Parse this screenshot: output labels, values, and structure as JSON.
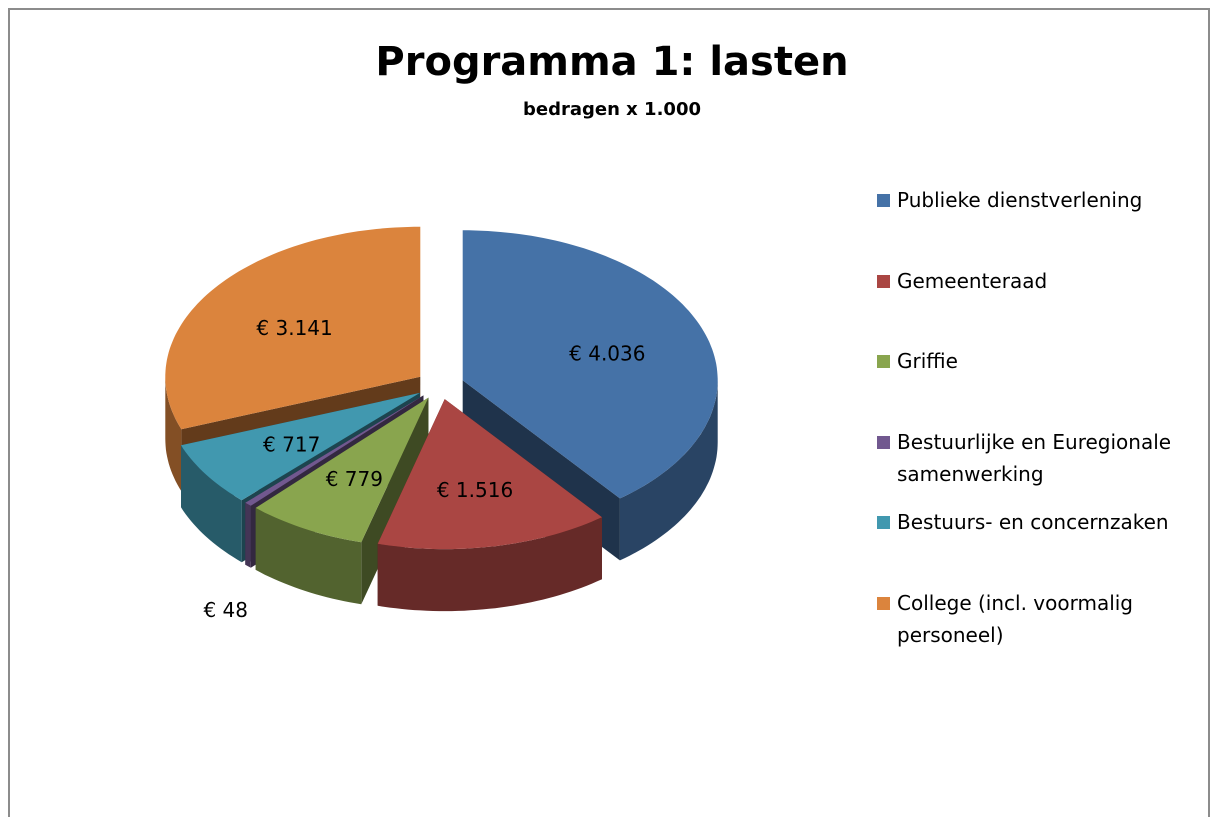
{
  "chart_data": {
    "type": "pie",
    "title": "Programma 1: lasten",
    "subtitle": "bedragen x 1.000",
    "categories": [
      "Publieke dienstverlening",
      "Gemeenteraad",
      "Griffie",
      "Bestuurlijke en Euregionale samenwerking",
      "Bestuurs- en concernzaken",
      "College (incl. voormalig personeel)"
    ],
    "values": [
      4036,
      1516,
      779,
      48,
      717,
      3141
    ],
    "value_labels": [
      "€ 4.036",
      "€ 1.516",
      "€ 779",
      "€ 48",
      "€ 717",
      "€ 3.141"
    ],
    "colors": [
      "#4572a7",
      "#aa4643",
      "#89a54e",
      "#71588f",
      "#4198af",
      "#db843d"
    ],
    "legend": "right"
  }
}
